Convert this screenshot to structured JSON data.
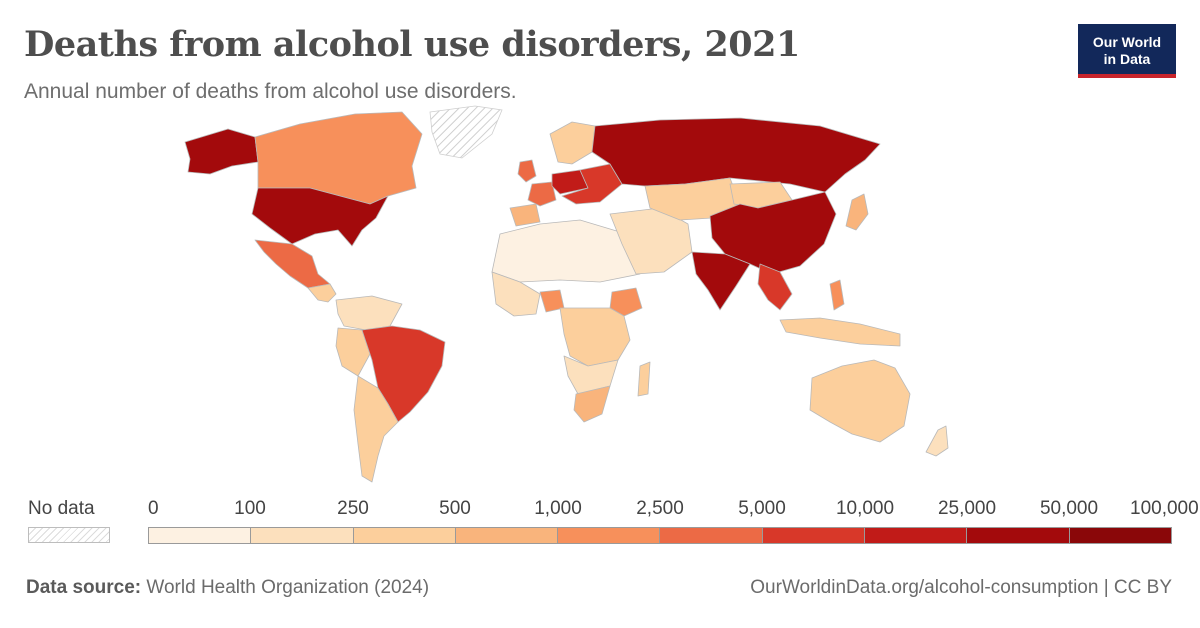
{
  "header": {
    "title": "Deaths from alcohol use disorders, 2021",
    "subtitle": "Annual number of deaths from alcohol use disorders."
  },
  "logo": {
    "line1": "Our World",
    "line2": "in Data",
    "bg_color": "#12285a",
    "accent_color": "#c8242b"
  },
  "legend": {
    "no_data_label": "No data",
    "ticks": [
      "0",
      "100",
      "250",
      "500",
      "1,000",
      "2,500",
      "5,000",
      "10,000",
      "25,000",
      "50,000",
      "100,000"
    ],
    "colors": [
      "#fdf1e2",
      "#fce0bd",
      "#fccf9c",
      "#f9b47c",
      "#f7905b",
      "#ec6a45",
      "#d83829",
      "#c11b18",
      "#a30a0c",
      "#8a0709"
    ]
  },
  "footer": {
    "source_label": "Data source:",
    "source_text": "World Health Organization (2024)",
    "link": "OurWorldinData.org/alcohol-consumption | CC BY"
  },
  "map": {
    "regions": [
      {
        "name": "Alaska",
        "bin": 8
      },
      {
        "name": "Canada",
        "bin": 4
      },
      {
        "name": "Greenland",
        "bin": null
      },
      {
        "name": "United States",
        "bin": 8
      },
      {
        "name": "Mexico",
        "bin": 5
      },
      {
        "name": "Central America",
        "bin": 2
      },
      {
        "name": "Colombia & Venezuela",
        "bin": 1
      },
      {
        "name": "Peru",
        "bin": 2
      },
      {
        "name": "Brazil",
        "bin": 6
      },
      {
        "name": "Argentina & Chile",
        "bin": 2
      },
      {
        "name": "United Kingdom",
        "bin": 5
      },
      {
        "name": "Iberia",
        "bin": 3
      },
      {
        "name": "France",
        "bin": 5
      },
      {
        "name": "Germany & Poland",
        "bin": 7
      },
      {
        "name": "Scandinavia",
        "bin": 2
      },
      {
        "name": "Eastern Europe",
        "bin": 6
      },
      {
        "name": "Russia",
        "bin": 8
      },
      {
        "name": "North Africa",
        "bin": 0
      },
      {
        "name": "West Africa",
        "bin": 1
      },
      {
        "name": "Nigeria",
        "bin": 4
      },
      {
        "name": "Ethiopia",
        "bin": 4
      },
      {
        "name": "Central & East Africa",
        "bin": 2
      },
      {
        "name": "Southern Africa",
        "bin": 1
      },
      {
        "name": "South Africa",
        "bin": 3
      },
      {
        "name": "Madagascar",
        "bin": 2
      },
      {
        "name": "Middle East",
        "bin": 1
      },
      {
        "name": "Central Asia",
        "bin": 2
      },
      {
        "name": "Mongolia",
        "bin": 2
      },
      {
        "name": "China",
        "bin": 8
      },
      {
        "name": "India",
        "bin": 8
      },
      {
        "name": "Southeast Asia",
        "bin": 6
      },
      {
        "name": "Japan",
        "bin": 3
      },
      {
        "name": "Philippines",
        "bin": 4
      },
      {
        "name": "Indonesia",
        "bin": 2
      },
      {
        "name": "Australia",
        "bin": 2
      },
      {
        "name": "New Zealand",
        "bin": 1
      }
    ]
  }
}
